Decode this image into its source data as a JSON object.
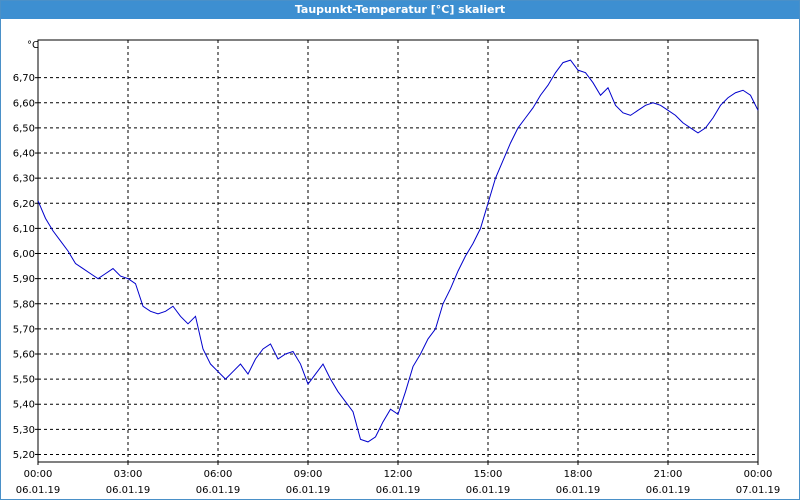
{
  "window": {
    "title": "Taupunkt-Temperatur [°C] skaliert"
  },
  "chart_data": {
    "type": "line",
    "title": "Taupunkt-Temperatur [°C] skaliert",
    "ylabel": "°C",
    "xlabel": "",
    "ylim": [
      5.17,
      6.85
    ],
    "yticks": [
      "5,20",
      "5,30",
      "5,40",
      "5,50",
      "5,60",
      "5,70",
      "5,80",
      "5,90",
      "6,00",
      "6,10",
      "6,20",
      "6,30",
      "6,40",
      "6,50",
      "6,60",
      "6,70"
    ],
    "ytick_values": [
      5.2,
      5.3,
      5.4,
      5.5,
      5.6,
      5.7,
      5.8,
      5.9,
      6.0,
      6.1,
      6.2,
      6.3,
      6.4,
      6.5,
      6.6,
      6.7
    ],
    "xlim_hours": [
      0,
      24
    ],
    "xticks": [
      {
        "hour": 0,
        "time": "00:00",
        "date": "06.01.19"
      },
      {
        "hour": 3,
        "time": "03:00",
        "date": "06.01.19"
      },
      {
        "hour": 6,
        "time": "06:00",
        "date": "06.01.19"
      },
      {
        "hour": 9,
        "time": "09:00",
        "date": "06.01.19"
      },
      {
        "hour": 12,
        "time": "12:00",
        "date": "06.01.19"
      },
      {
        "hour": 15,
        "time": "15:00",
        "date": "06.01.19"
      },
      {
        "hour": 18,
        "time": "18:00",
        "date": "06.01.19"
      },
      {
        "hour": 21,
        "time": "21:00",
        "date": "06.01.19"
      },
      {
        "hour": 24,
        "time": "00:00",
        "date": "07.01.19"
      }
    ],
    "grid": true,
    "line_color": "#0000cc",
    "series": [
      {
        "x": [
          0,
          0.25,
          0.5,
          0.75,
          1.0,
          1.25,
          1.5,
          1.75,
          2.0,
          2.25,
          2.5,
          2.75,
          3.0,
          3.25,
          3.5,
          3.75,
          4.0,
          4.25,
          4.5,
          4.75,
          5.0,
          5.25,
          5.5,
          5.75,
          6.0,
          6.25,
          6.5,
          6.75,
          7.0,
          7.25,
          7.5,
          7.75,
          8.0,
          8.25,
          8.5,
          8.75,
          9.0,
          9.25,
          9.5,
          9.75,
          10.0,
          10.25,
          10.5,
          10.75,
          11.0,
          11.25,
          11.5,
          11.75,
          12.0,
          12.25,
          12.5,
          12.75,
          13.0,
          13.25,
          13.5,
          13.75,
          14.0,
          14.25,
          14.5,
          14.75,
          15.0,
          15.25,
          15.5,
          15.75,
          16.0,
          16.25,
          16.5,
          16.75,
          17.0,
          17.25,
          17.5,
          17.75,
          18.0,
          18.25,
          18.5,
          18.75,
          19.0,
          19.25,
          19.5,
          19.75,
          20.0,
          20.25,
          20.5,
          20.75,
          21.0,
          21.25,
          21.5,
          21.75,
          22.0,
          22.25,
          22.5,
          22.75,
          23.0,
          23.25,
          23.5,
          23.75,
          24.0
        ],
        "y": [
          6.21,
          6.14,
          6.09,
          6.05,
          6.01,
          5.96,
          5.94,
          5.92,
          5.9,
          5.92,
          5.94,
          5.91,
          5.9,
          5.88,
          5.79,
          5.77,
          5.76,
          5.77,
          5.79,
          5.75,
          5.72,
          5.75,
          5.62,
          5.56,
          5.53,
          5.5,
          5.53,
          5.56,
          5.52,
          5.58,
          5.62,
          5.64,
          5.58,
          5.6,
          5.61,
          5.56,
          5.48,
          5.52,
          5.56,
          5.5,
          5.45,
          5.41,
          5.37,
          5.26,
          5.25,
          5.27,
          5.33,
          5.38,
          5.36,
          5.45,
          5.55,
          5.6,
          5.66,
          5.7,
          5.8,
          5.86,
          5.93,
          5.99,
          6.04,
          6.1,
          6.2,
          6.3,
          6.37,
          6.44,
          6.5,
          6.54,
          6.58,
          6.63,
          6.67,
          6.72,
          6.76,
          6.77,
          6.73,
          6.72,
          6.68,
          6.63,
          6.66,
          6.59,
          6.56,
          6.55,
          6.57,
          6.59,
          6.6,
          6.59,
          6.57,
          6.55,
          6.52,
          6.5,
          6.48,
          6.5,
          6.54,
          6.59,
          6.62,
          6.64,
          6.65,
          6.63,
          6.57
        ]
      }
    ]
  }
}
